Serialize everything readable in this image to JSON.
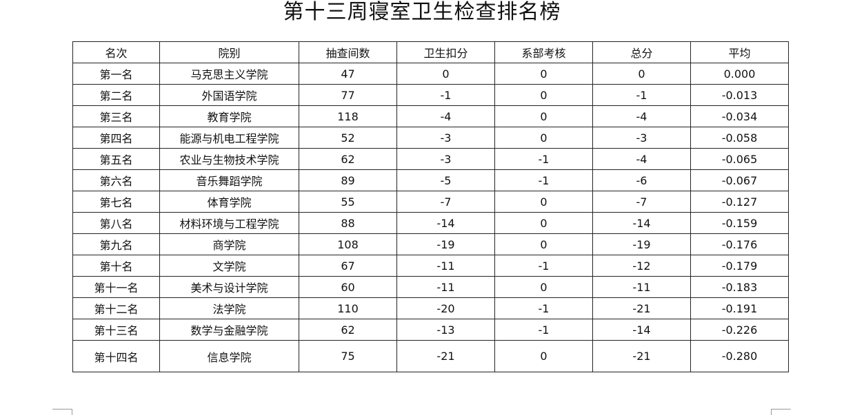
{
  "title": "第十三周寝室卫生检查排名榜",
  "table": {
    "headers": [
      "名次",
      "院别",
      "抽查间数",
      "卫生扣分",
      "系部考核",
      "总分",
      "平均"
    ],
    "rows": [
      [
        "第一名",
        "马克思主义学院",
        "47",
        "0",
        "0",
        "0",
        "0.000"
      ],
      [
        "第二名",
        "外国语学院",
        "77",
        "-1",
        "0",
        "-1",
        "-0.013"
      ],
      [
        "第三名",
        "教育学院",
        "118",
        "-4",
        "0",
        "-4",
        "-0.034"
      ],
      [
        "第四名",
        "能源与机电工程学院",
        "52",
        "-3",
        "0",
        "-3",
        "-0.058"
      ],
      [
        "第五名",
        "农业与生物技术学院",
        "62",
        "-3",
        "-1",
        "-4",
        "-0.065"
      ],
      [
        "第六名",
        "音乐舞蹈学院",
        "89",
        "-5",
        "-1",
        "-6",
        "-0.067"
      ],
      [
        "第七名",
        "体育学院",
        "55",
        "-7",
        "0",
        "-7",
        "-0.127"
      ],
      [
        "第八名",
        "材料环境与工程学院",
        "88",
        "-14",
        "0",
        "-14",
        "-0.159"
      ],
      [
        "第九名",
        "商学院",
        "108",
        "-19",
        "0",
        "-19",
        "-0.176"
      ],
      [
        "第十名",
        "文学院",
        "67",
        "-11",
        "-1",
        "-12",
        "-0.179"
      ],
      [
        "第十一名",
        "美术与设计学院",
        "60",
        "-11",
        "0",
        "-11",
        "-0.183"
      ],
      [
        "第十二名",
        "法学院",
        "110",
        "-20",
        "-1",
        "-21",
        "-0.191"
      ],
      [
        "第十三名",
        "数学与金融学院",
        "62",
        "-13",
        "-1",
        "-14",
        "-0.226"
      ],
      [
        "第十四名",
        "信息学院",
        "75",
        "-21",
        "0",
        "-21",
        "-0.280"
      ]
    ]
  }
}
